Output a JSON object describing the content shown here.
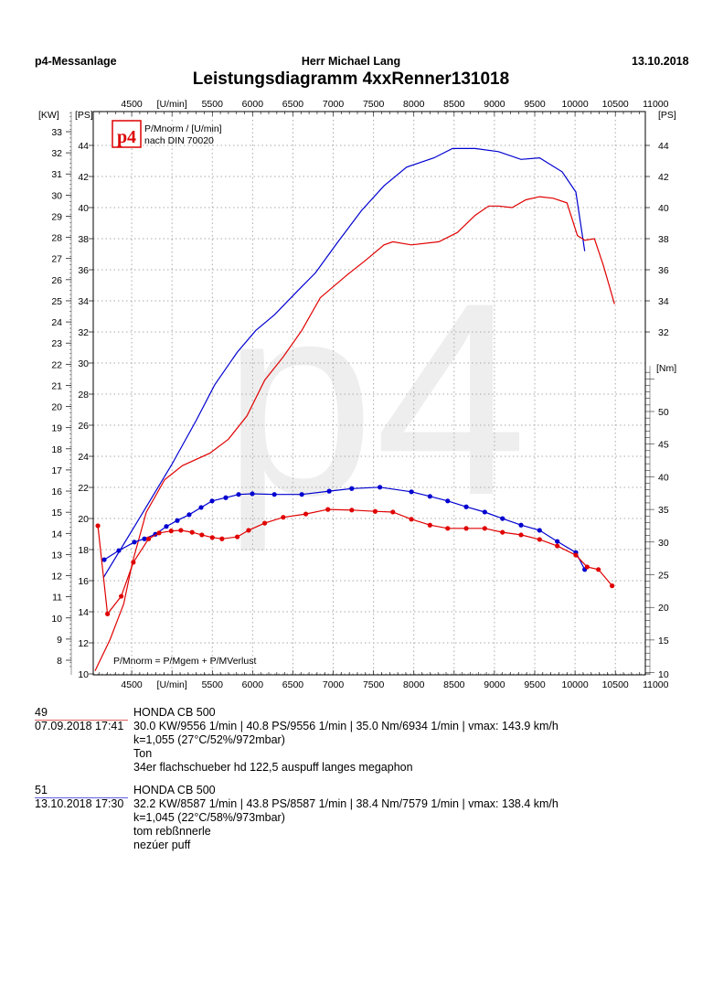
{
  "header": {
    "left": "p4-Messanlage",
    "center": "Herr Michael Lang",
    "right": "13.10.2018",
    "title": "Leistungsdiagramm 4xxRenner131018"
  },
  "legend": {
    "line1": "P/Mnorm / [U/min]",
    "line2": "nach DIN 70020",
    "logo": "p4"
  },
  "formula": "P/Mnorm = P/Mgem + P/MVerlust",
  "watermark": "p4",
  "colors": {
    "run49": "#e00000",
    "run51": "#0000d0"
  },
  "chart_data": {
    "type": "line",
    "title": "Leistungsdiagramm 4xxRenner131018",
    "xlabel": "[U/min]",
    "xlim": [
      4000,
      10850
    ],
    "x_ticks": [
      4500,
      5000,
      5500,
      6000,
      6500,
      7000,
      7500,
      8000,
      8500,
      9000,
      9500,
      10000,
      10500,
      11000
    ],
    "x_tick_labels": [
      "4500",
      "[U/min]",
      "5500",
      "6000",
      "6500",
      "7000",
      "7500",
      "8000",
      "8500",
      "9000",
      "9500",
      "10000",
      "10500",
      "11000"
    ],
    "axes": {
      "kw": {
        "label": "[KW]",
        "ticks": [
          8,
          9,
          10,
          11,
          12,
          13,
          14,
          15,
          16,
          17,
          18,
          19,
          20,
          21,
          22,
          23,
          24,
          25,
          26,
          27,
          28,
          29,
          30,
          31,
          32,
          33
        ]
      },
      "ps": {
        "label": "[PS]",
        "ylim": [
          10,
          46.2
        ],
        "ticks": [
          10,
          12,
          14,
          16,
          18,
          20,
          22,
          24,
          26,
          28,
          30,
          32,
          34,
          36,
          38,
          40,
          42,
          44
        ],
        "right_ticks": [
          10,
          32,
          34,
          36,
          38,
          40,
          42,
          44
        ]
      },
      "nm": {
        "label": "[Nm]",
        "ylim": [
          10,
          56.7
        ],
        "ticks": [
          15,
          20,
          25,
          30,
          35,
          40,
          45,
          50
        ]
      }
    },
    "grid": true,
    "series": [
      {
        "name": "Run 51 power",
        "unit": "PS",
        "color": "#0000d0",
        "points": [
          [
            4150,
            16.2
          ],
          [
            4570,
            19.8
          ],
          [
            5000,
            23.5
          ],
          [
            5300,
            26.3
          ],
          [
            5530,
            28.6
          ],
          [
            5810,
            30.7
          ],
          [
            6040,
            32.1
          ],
          [
            6270,
            33.1
          ],
          [
            6550,
            34.6
          ],
          [
            6780,
            35.8
          ],
          [
            7060,
            37.8
          ],
          [
            7350,
            39.8
          ],
          [
            7630,
            41.4
          ],
          [
            7910,
            42.6
          ],
          [
            8250,
            43.2
          ],
          [
            8480,
            43.8
          ],
          [
            8760,
            43.8
          ],
          [
            9050,
            43.6
          ],
          [
            9330,
            43.1
          ],
          [
            9560,
            43.2
          ],
          [
            9840,
            42.3
          ],
          [
            10010,
            41.0
          ],
          [
            10120,
            37.2
          ]
        ]
      },
      {
        "name": "Run 49 power",
        "unit": "PS",
        "color": "#e00000",
        "points": [
          [
            4045,
            10.2
          ],
          [
            4230,
            12.2
          ],
          [
            4400,
            14.5
          ],
          [
            4510,
            17.2
          ],
          [
            4680,
            20.4
          ],
          [
            4910,
            22.5
          ],
          [
            5130,
            23.4
          ],
          [
            5470,
            24.2
          ],
          [
            5700,
            25.1
          ],
          [
            5930,
            26.6
          ],
          [
            6150,
            28.9
          ],
          [
            6380,
            30.4
          ],
          [
            6610,
            32.1
          ],
          [
            6840,
            34.2
          ],
          [
            7180,
            35.7
          ],
          [
            7400,
            36.6
          ],
          [
            7630,
            37.6
          ],
          [
            7740,
            37.8
          ],
          [
            7970,
            37.6
          ],
          [
            8310,
            37.8
          ],
          [
            8540,
            38.4
          ],
          [
            8760,
            39.5
          ],
          [
            8930,
            40.1
          ],
          [
            9050,
            40.1
          ],
          [
            9220,
            40.0
          ],
          [
            9390,
            40.5
          ],
          [
            9560,
            40.7
          ],
          [
            9730,
            40.6
          ],
          [
            9900,
            40.3
          ],
          [
            10030,
            38.2
          ],
          [
            10120,
            37.9
          ],
          [
            10240,
            38.0
          ],
          [
            10350,
            36.3
          ],
          [
            10490,
            33.8
          ]
        ]
      },
      {
        "name": "Run 51 torque",
        "unit": "Nm",
        "color": "#0000d0",
        "markers": true,
        "points": [
          [
            4159,
            27.3
          ],
          [
            4340,
            28.7
          ],
          [
            4533,
            30.0
          ],
          [
            4658,
            30.5
          ],
          [
            4794,
            31.2
          ],
          [
            4930,
            32.4
          ],
          [
            5066,
            33.3
          ],
          [
            5213,
            34.2
          ],
          [
            5361,
            35.3
          ],
          [
            5497,
            36.3
          ],
          [
            5667,
            36.8
          ],
          [
            5826,
            37.3
          ],
          [
            5996,
            37.4
          ],
          [
            6270,
            37.3
          ],
          [
            6610,
            37.3
          ],
          [
            6950,
            37.8
          ],
          [
            7230,
            38.2
          ],
          [
            7579,
            38.4
          ],
          [
            7970,
            37.7
          ],
          [
            8200,
            37.0
          ],
          [
            8420,
            36.3
          ],
          [
            8650,
            35.4
          ],
          [
            8880,
            34.6
          ],
          [
            9100,
            33.6
          ],
          [
            9330,
            32.6
          ],
          [
            9560,
            31.8
          ],
          [
            9780,
            30.1
          ],
          [
            10010,
            28.4
          ],
          [
            10120,
            25.8
          ]
        ]
      },
      {
        "name": "Run 49 torque",
        "unit": "Nm",
        "color": "#e00000",
        "markers": true,
        "points": [
          [
            4080,
            32.5
          ],
          [
            4200,
            19.0
          ],
          [
            4370,
            21.7
          ],
          [
            4520,
            26.9
          ],
          [
            4710,
            30.5
          ],
          [
            4840,
            31.4
          ],
          [
            4990,
            31.7
          ],
          [
            5110,
            31.8
          ],
          [
            5250,
            31.5
          ],
          [
            5370,
            31.1
          ],
          [
            5500,
            30.7
          ],
          [
            5620,
            30.5
          ],
          [
            5810,
            30.8
          ],
          [
            5950,
            31.8
          ],
          [
            6150,
            32.9
          ],
          [
            6380,
            33.8
          ],
          [
            6660,
            34.3
          ],
          [
            6934,
            35.0
          ],
          [
            7230,
            34.9
          ],
          [
            7520,
            34.7
          ],
          [
            7740,
            34.6
          ],
          [
            7970,
            33.5
          ],
          [
            8200,
            32.6
          ],
          [
            8420,
            32.1
          ],
          [
            8650,
            32.1
          ],
          [
            8880,
            32.1
          ],
          [
            9100,
            31.5
          ],
          [
            9330,
            31.1
          ],
          [
            9560,
            30.4
          ],
          [
            9780,
            29.4
          ],
          [
            10010,
            28.0
          ],
          [
            10150,
            26.2
          ],
          [
            10290,
            25.8
          ],
          [
            10460,
            23.3
          ]
        ]
      }
    ]
  },
  "runs": [
    {
      "num": "49",
      "date": "07.09.2018  17:41",
      "vehicle": "HONDA CB 500",
      "summary": "30.0 KW/9556 1/min  |  40.8 PS/9556 1/min  |  35.0 Nm/6934 1/min | vmax: 143.9 km/h",
      "conditions": "k=1,055 (27°C/52%/972mbar)",
      "note1": "Ton",
      "note2": "34er flachschueber hd 122,5 auspuff langes megaphon"
    },
    {
      "num": "51",
      "date": "13.10.2018  17:30",
      "vehicle": "HONDA CB 500",
      "summary": "32.2 KW/8587 1/min  |  43.8 PS/8587 1/min  |  38.4 Nm/7579 1/min | vmax: 138.4 km/h",
      "conditions": "k=1,045 (22°C/58%/973mbar)",
      "note1": "tom rebßnnerle",
      "note2": "nezúer puff"
    }
  ]
}
